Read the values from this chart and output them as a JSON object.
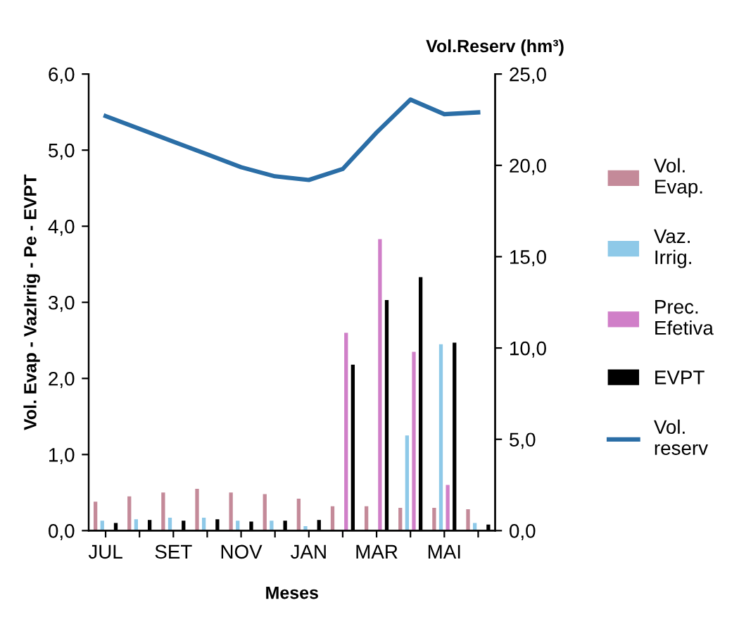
{
  "chart_data": {
    "type": "bar",
    "xlabel": "Meses",
    "ylabel": "Vol. Evap - VazIrrig - Pe - EVPT",
    "y2label": "Vol.Reserv (hm³)",
    "categories": [
      "JUL",
      null,
      "SET",
      null,
      "NOV",
      null,
      "JAN",
      null,
      "MAR",
      null,
      "MAI",
      null
    ],
    "series": [
      {
        "name": "Vol. Evap.",
        "color": "#c48a99",
        "values": [
          0.38,
          0.45,
          0.5,
          0.55,
          0.5,
          0.48,
          0.42,
          0.32,
          0.32,
          0.3,
          0.3,
          0.28
        ]
      },
      {
        "name": "Vaz. Irrig.",
        "color": "#8ec9e8",
        "values": [
          0.13,
          0.15,
          0.17,
          0.17,
          0.13,
          0.13,
          0.06,
          0,
          0,
          1.25,
          2.45,
          0.1
        ]
      },
      {
        "name": "Prec. Efetiva",
        "color": "#d07fc8",
        "values": [
          0,
          0,
          0,
          0,
          0,
          0,
          0,
          2.6,
          3.83,
          2.35,
          0.6,
          0
        ]
      },
      {
        "name": "EVPT",
        "color": "#000000",
        "values": [
          0.1,
          0.14,
          0.13,
          0.15,
          0.12,
          0.13,
          0.14,
          2.18,
          3.03,
          3.33,
          2.47,
          0.08
        ]
      },
      {
        "name": "Vol. reserv",
        "type": "line",
        "axis": "y2",
        "color": "#2b6ea6",
        "values": [
          22.7,
          22.0,
          21.3,
          20.6,
          19.9,
          19.4,
          19.2,
          19.8,
          21.8,
          23.6,
          22.8,
          22.9
        ]
      }
    ],
    "ylim": [
      0,
      6
    ],
    "yticks": [
      {
        "value": 0,
        "label": "0,0"
      },
      {
        "value": 1,
        "label": "1,0"
      },
      {
        "value": 2,
        "label": "2,0"
      },
      {
        "value": 3,
        "label": "3,0"
      },
      {
        "value": 4,
        "label": "4,0"
      },
      {
        "value": 5,
        "label": "5,0"
      },
      {
        "value": 6,
        "label": "6,0"
      }
    ],
    "y2lim": [
      0,
      25
    ],
    "y2ticks": [
      {
        "value": 0,
        "label": "0,0"
      },
      {
        "value": 5,
        "label": "5,0"
      },
      {
        "value": 10,
        "label": "10,0"
      },
      {
        "value": 15,
        "label": "15,0"
      },
      {
        "value": 20,
        "label": "20,0"
      },
      {
        "value": 25,
        "label": "25,0"
      }
    ],
    "grid": false,
    "legend": "right"
  }
}
